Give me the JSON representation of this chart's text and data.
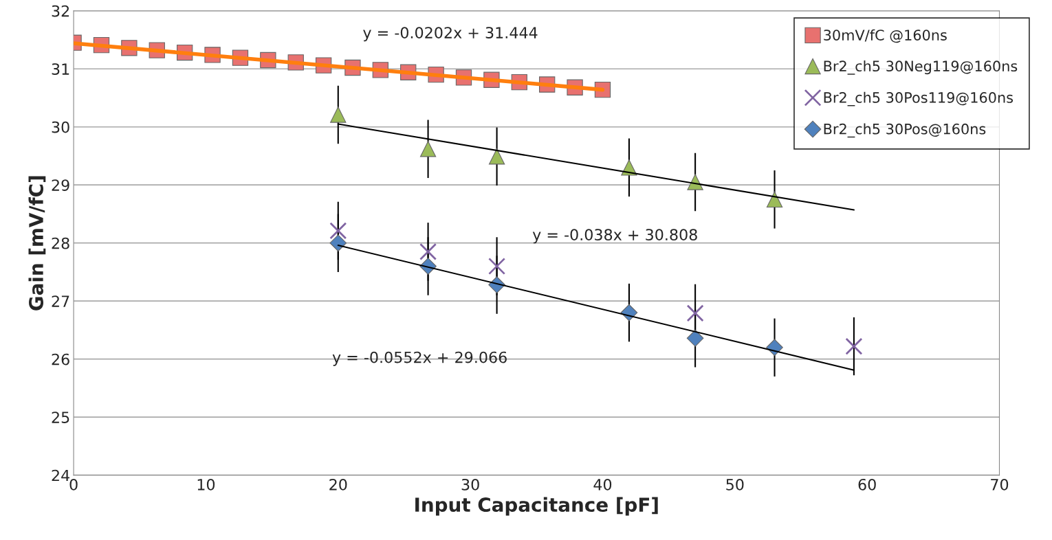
{
  "chart_data": {
    "type": "scatter",
    "xlabel": "Input Capacitance [pF]",
    "ylabel": "Gain [mV/fC]",
    "xlim": [
      0,
      70
    ],
    "xticks": [
      0,
      10,
      20,
      30,
      40,
      50,
      60,
      70
    ],
    "ylim": [
      24,
      32
    ],
    "yticks": [
      24,
      25,
      26,
      27,
      28,
      29,
      30,
      31,
      32
    ],
    "grid": "y",
    "legend": "top right",
    "series": [
      {
        "name": "30mV/fC @160ns",
        "marker": "square",
        "color": "#e8716f",
        "x": [
          0,
          2.1,
          4.2,
          6.3,
          8.4,
          10.5,
          12.6,
          14.7,
          16.8,
          18.9,
          21.1,
          23.2,
          25.3,
          27.4,
          29.5,
          31.6,
          33.7,
          35.8,
          37.9,
          40
        ],
        "values": [
          31.45,
          31.41,
          31.36,
          31.32,
          31.28,
          31.24,
          31.19,
          31.15,
          31.11,
          31.06,
          31.02,
          30.98,
          30.94,
          30.9,
          30.85,
          30.81,
          30.77,
          30.73,
          30.68,
          30.64
        ]
      },
      {
        "name": "Br2_ch5 30Neg119@160ns",
        "marker": "triangle",
        "color": "#9bbb59",
        "x": [
          20,
          26.8,
          32,
          42,
          47,
          53
        ],
        "values": [
          30.21,
          29.62,
          29.49,
          29.3,
          29.05,
          28.75
        ],
        "errors": [
          0.5,
          0.5,
          0.5,
          0.5,
          0.5,
          0.5
        ]
      },
      {
        "name": "Br2_ch5 30Pos119@160ns",
        "marker": "cross",
        "color": "#8064a2",
        "x": [
          20,
          26.8,
          32,
          47,
          59
        ],
        "values": [
          28.21,
          27.85,
          27.6,
          26.79,
          26.22
        ],
        "errors": [
          0.5,
          0.5,
          0.5,
          0.5,
          0.5
        ]
      },
      {
        "name": "Br2_ch5 30Pos@160ns",
        "marker": "diamond",
        "color": "#4f81bd",
        "x": [
          20,
          26.8,
          32,
          42,
          47,
          53
        ],
        "values": [
          28.0,
          27.6,
          27.28,
          26.8,
          26.36,
          26.2
        ],
        "errors": [
          0.5,
          0.5,
          0.5,
          0.5,
          0.5,
          0.5
        ]
      },
      {
        "type": "line",
        "color": "#ff7f0e",
        "x": [
          0,
          40
        ],
        "values": [
          31.44,
          30.64
        ]
      },
      {
        "type": "line",
        "color": "#000000",
        "x": [
          20,
          59
        ],
        "values": [
          30.05,
          28.57
        ]
      },
      {
        "type": "line",
        "color": "#000000",
        "x": [
          20,
          59
        ],
        "values": [
          27.96,
          25.81
        ]
      }
    ],
    "annotations": [
      "y = -0.0202x + 31.444",
      "y = -0.038x + 30.808",
      "y = -0.0552x + 29.066"
    ]
  }
}
